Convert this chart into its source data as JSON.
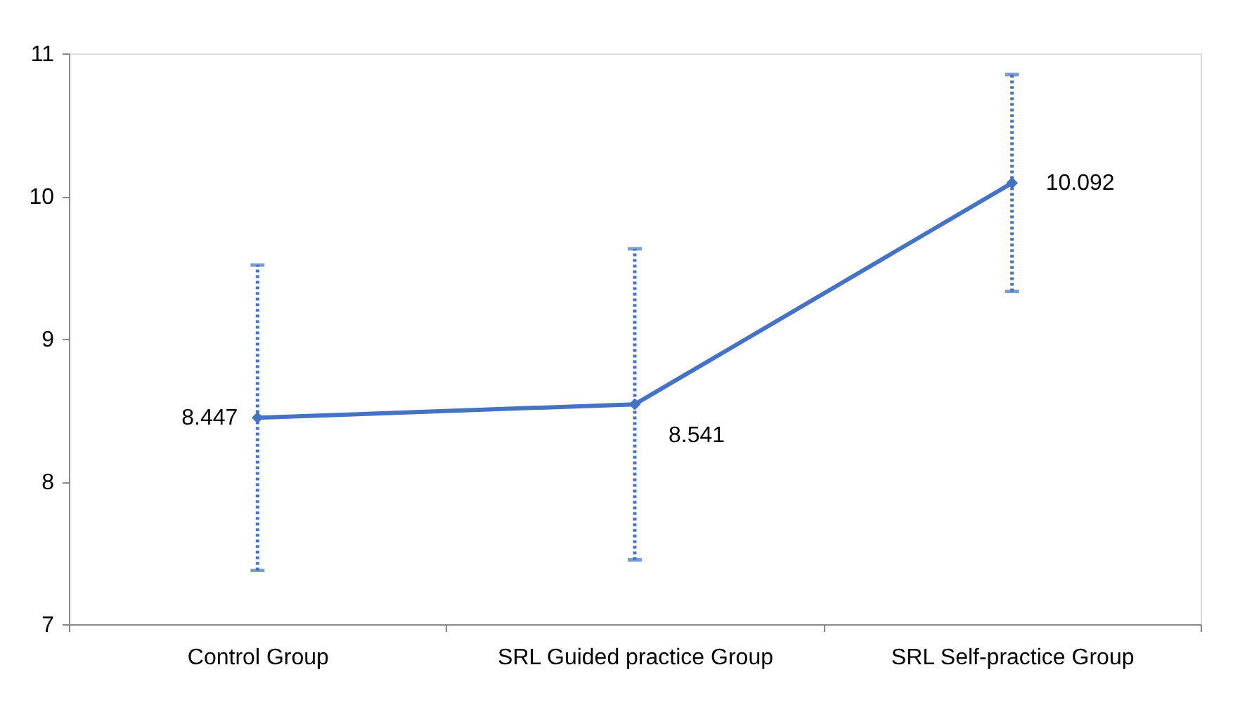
{
  "chart_data": {
    "type": "line",
    "categories": [
      "Control Group",
      "SRL Guided practice Group",
      "SRL Self-practice Group"
    ],
    "series": [
      {
        "color": "#4472c4",
        "values": [
          8.447,
          8.541,
          10.092
        ],
        "errors": [
          1.07,
          1.09,
          0.76
        ]
      }
    ],
    "ylim": [
      7,
      11
    ],
    "yticks": [
      7,
      8,
      9,
      10,
      11
    ],
    "grid": false,
    "legend": false,
    "marker": "diamond",
    "line_style": "solid",
    "data_labels": true
  }
}
